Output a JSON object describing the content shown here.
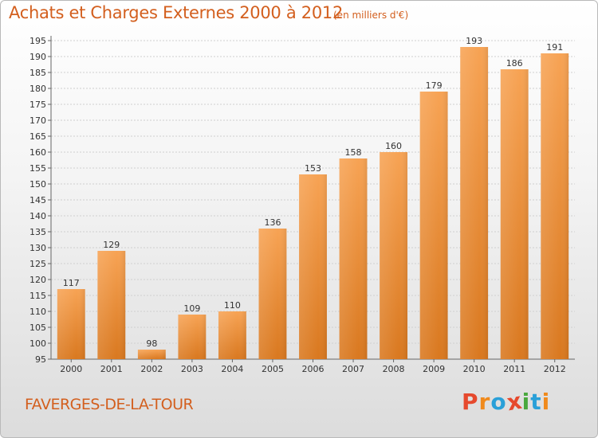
{
  "header": {
    "title": "Achats et Charges Externes 2000 à 2012",
    "subtitle": "(en milliers d'€)"
  },
  "footer": {
    "commune": "FAVERGES-DE-LA-TOUR",
    "logo": "Proxiti"
  },
  "colors": {
    "accent": "#d35f1e",
    "bar_light": "#f7a354",
    "bar_dark": "#d9781f",
    "logo_letters": [
      "#e6492d",
      "#f08a1c",
      "#2aa0d8",
      "#e6492d",
      "#49a83d",
      "#2aa0d8",
      "#f08a1c"
    ]
  },
  "chart_data": {
    "type": "bar",
    "title": "Achats et Charges Externes 2000 à 2012",
    "subtitle": "(en milliers d'€)",
    "categories": [
      "2000",
      "2001",
      "2002",
      "2003",
      "2004",
      "2005",
      "2006",
      "2007",
      "2008",
      "2009",
      "2010",
      "2011",
      "2012"
    ],
    "values": [
      117,
      129,
      98,
      109,
      110,
      136,
      153,
      158,
      160,
      179,
      193,
      186,
      191
    ],
    "ylim": [
      95,
      195
    ],
    "yticks": [
      95,
      100,
      105,
      110,
      115,
      120,
      125,
      130,
      135,
      140,
      145,
      150,
      155,
      160,
      165,
      170,
      175,
      180,
      185,
      190,
      195
    ],
    "grid": true,
    "data_labels": true
  }
}
